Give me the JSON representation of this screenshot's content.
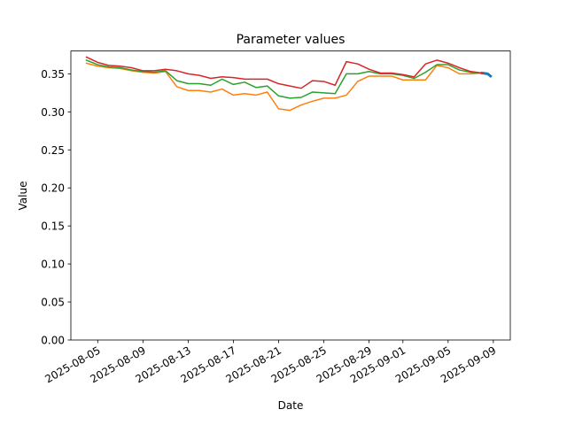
{
  "chart_data": {
    "type": "line",
    "title": "Parameter values",
    "xlabel": "Date",
    "ylabel": "Value",
    "x_axis_type": "date",
    "xlim": [
      "2025-08-02T15:00",
      "2025-09-10T12:00"
    ],
    "ylim": [
      0.0,
      0.38
    ],
    "x_ticks": [
      "2025-08-05",
      "2025-08-09",
      "2025-08-13",
      "2025-08-17",
      "2025-08-21",
      "2025-08-25",
      "2025-08-29",
      "2025-09-01",
      "2025-09-05",
      "2025-09-09"
    ],
    "y_ticks": [
      0.0,
      0.05,
      0.1,
      0.15,
      0.2,
      0.25,
      0.3,
      0.35
    ],
    "y_tick_labels": [
      "0.00",
      "0.05",
      "0.10",
      "0.15",
      "0.20",
      "0.25",
      "0.30",
      "0.35"
    ],
    "grid": false,
    "legend": false,
    "series": [
      {
        "color": "#1f77b4",
        "x": [
          "2025-09-08",
          "2025-09-08T12:00",
          "2025-09-08T18:00"
        ],
        "y": [
          0.351,
          0.35,
          0.347
        ]
      },
      {
        "color": "#ff7f0e",
        "x": [
          "2025-08-04",
          "2025-08-05",
          "2025-08-06",
          "2025-08-07",
          "2025-08-08",
          "2025-08-09",
          "2025-08-10",
          "2025-08-11",
          "2025-08-12",
          "2025-08-13",
          "2025-08-14",
          "2025-08-15",
          "2025-08-16",
          "2025-08-17",
          "2025-08-18",
          "2025-08-19",
          "2025-08-20",
          "2025-08-21",
          "2025-08-22",
          "2025-08-23",
          "2025-08-24",
          "2025-08-25",
          "2025-08-26",
          "2025-08-27",
          "2025-08-28",
          "2025-08-29",
          "2025-08-30",
          "2025-08-31",
          "2025-09-01",
          "2025-09-02",
          "2025-09-03",
          "2025-09-04",
          "2025-09-05",
          "2025-09-06",
          "2025-09-07",
          "2025-09-08"
        ],
        "y": [
          0.364,
          0.36,
          0.358,
          0.357,
          0.354,
          0.352,
          0.351,
          0.353,
          0.333,
          0.328,
          0.328,
          0.326,
          0.33,
          0.322,
          0.324,
          0.322,
          0.326,
          0.304,
          0.302,
          0.309,
          0.314,
          0.318,
          0.318,
          0.322,
          0.34,
          0.347,
          0.347,
          0.347,
          0.342,
          0.342,
          0.342,
          0.361,
          0.358,
          0.35,
          0.35,
          0.351
        ]
      },
      {
        "color": "#2ca02c",
        "x": [
          "2025-08-04",
          "2025-08-05",
          "2025-08-06",
          "2025-08-07",
          "2025-08-08",
          "2025-08-09",
          "2025-08-10",
          "2025-08-11",
          "2025-08-12",
          "2025-08-13",
          "2025-08-14",
          "2025-08-15",
          "2025-08-16",
          "2025-08-17",
          "2025-08-18",
          "2025-08-19",
          "2025-08-20",
          "2025-08-21",
          "2025-08-22",
          "2025-08-23",
          "2025-08-24",
          "2025-08-25",
          "2025-08-26",
          "2025-08-27",
          "2025-08-28",
          "2025-08-29",
          "2025-08-30",
          "2025-08-31",
          "2025-09-01",
          "2025-09-02",
          "2025-09-03",
          "2025-09-04",
          "2025-09-05",
          "2025-09-06",
          "2025-09-07",
          "2025-09-08"
        ],
        "y": [
          0.368,
          0.362,
          0.359,
          0.358,
          0.355,
          0.353,
          0.352,
          0.354,
          0.341,
          0.337,
          0.337,
          0.335,
          0.343,
          0.336,
          0.339,
          0.332,
          0.334,
          0.321,
          0.318,
          0.319,
          0.326,
          0.325,
          0.324,
          0.35,
          0.35,
          0.353,
          0.35,
          0.35,
          0.348,
          0.344,
          0.352,
          0.362,
          0.362,
          0.355,
          0.352,
          0.351
        ]
      },
      {
        "color": "#d62728",
        "x": [
          "2025-08-04",
          "2025-08-05",
          "2025-08-06",
          "2025-08-07",
          "2025-08-08",
          "2025-08-09",
          "2025-08-10",
          "2025-08-11",
          "2025-08-12",
          "2025-08-13",
          "2025-08-14",
          "2025-08-15",
          "2025-08-16",
          "2025-08-17",
          "2025-08-18",
          "2025-08-19",
          "2025-08-20",
          "2025-08-21",
          "2025-08-22",
          "2025-08-23",
          "2025-08-24",
          "2025-08-25",
          "2025-08-26",
          "2025-08-27",
          "2025-08-28",
          "2025-08-29",
          "2025-08-30",
          "2025-08-31",
          "2025-09-01",
          "2025-09-02",
          "2025-09-03",
          "2025-09-04",
          "2025-09-05",
          "2025-09-06",
          "2025-09-07",
          "2025-09-08"
        ],
        "y": [
          0.372,
          0.365,
          0.361,
          0.36,
          0.358,
          0.354,
          0.354,
          0.356,
          0.354,
          0.35,
          0.348,
          0.344,
          0.346,
          0.345,
          0.343,
          0.343,
          0.343,
          0.337,
          0.334,
          0.331,
          0.341,
          0.34,
          0.335,
          0.366,
          0.363,
          0.356,
          0.351,
          0.351,
          0.349,
          0.346,
          0.363,
          0.368,
          0.364,
          0.358,
          0.353,
          0.351
        ]
      }
    ]
  }
}
